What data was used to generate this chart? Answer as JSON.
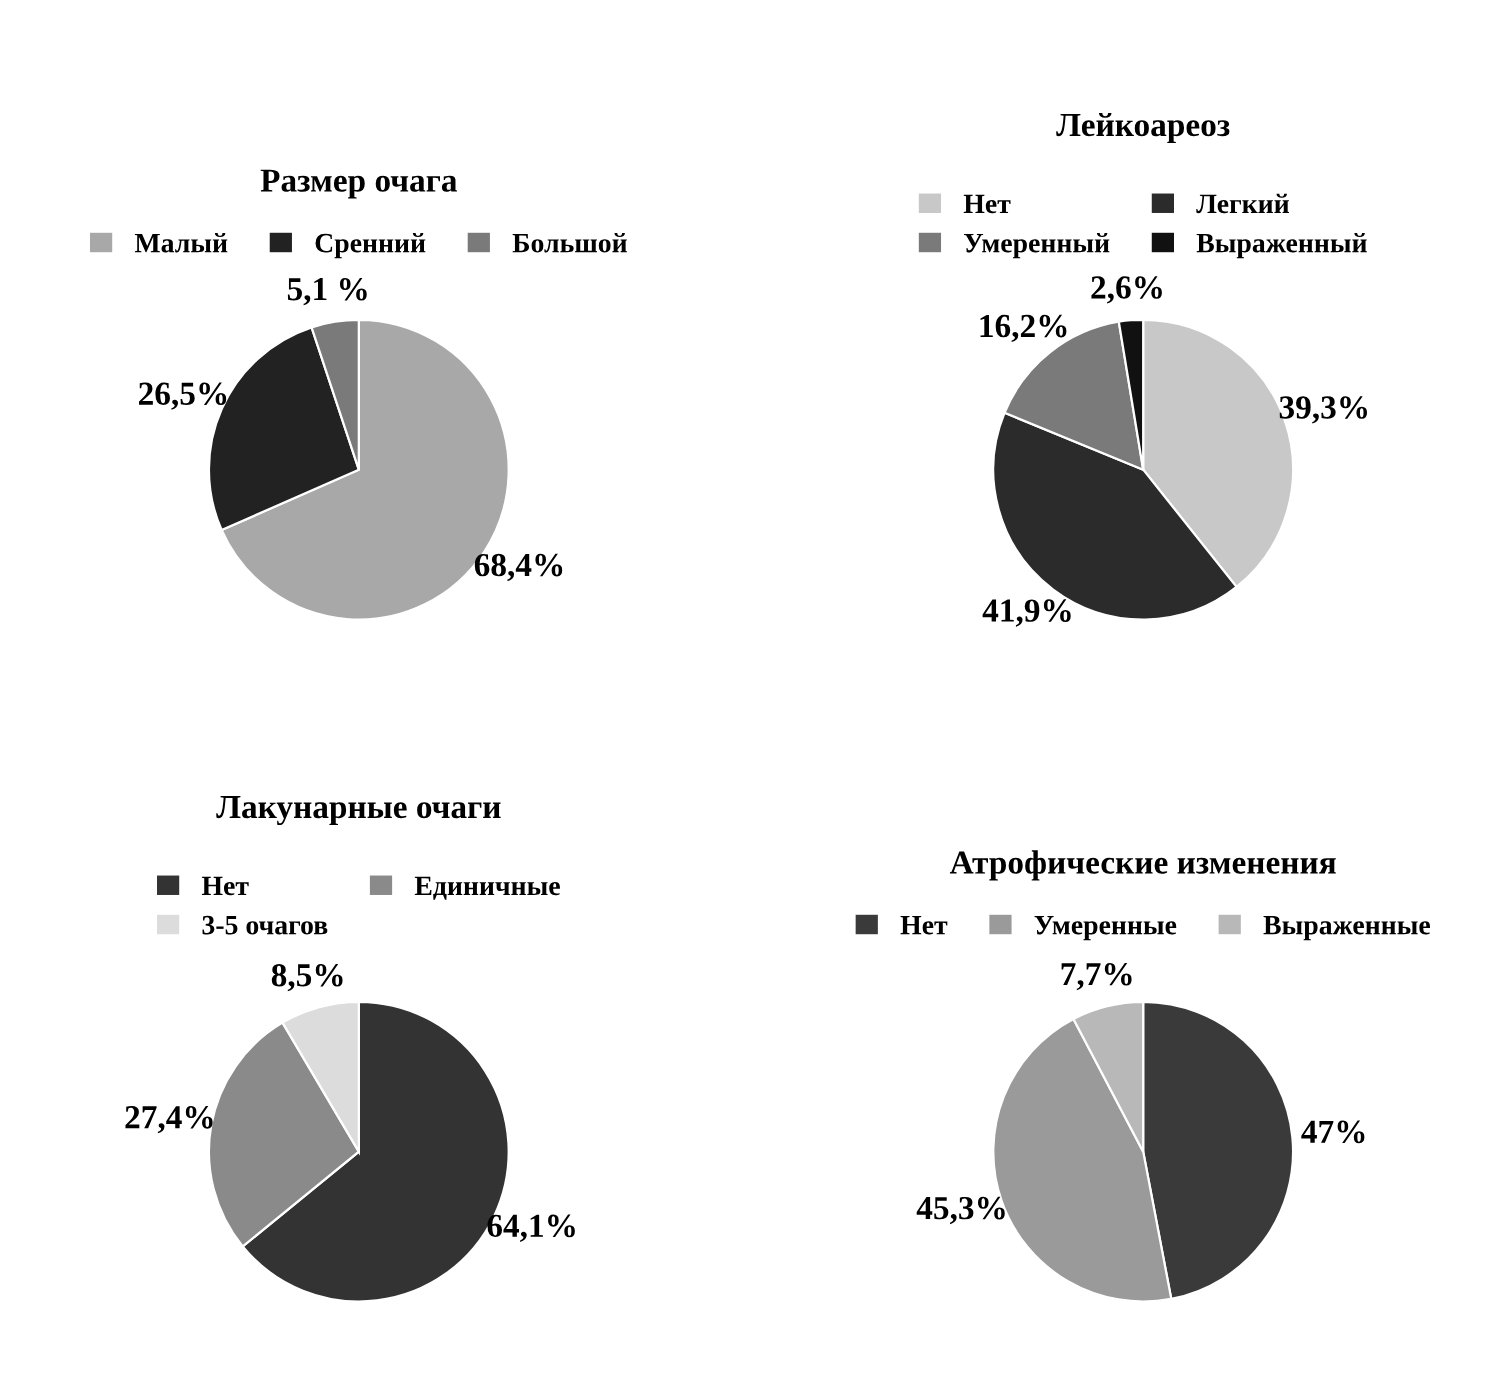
{
  "chart_data": [
    {
      "type": "pie",
      "title": "Размер очага",
      "categories": [
        "Малый",
        "Сренний",
        "Большой"
      ],
      "values": [
        68.4,
        26.5,
        5.1
      ],
      "colors": [
        "#a8a8a8",
        "#222222",
        "#7a7a7a"
      ],
      "value_labels": [
        "68,4%",
        "26,5%",
        "5,1 %"
      ],
      "legend": "top"
    },
    {
      "type": "pie",
      "title": "Лейкоареоз",
      "categories": [
        "Нет",
        "Легкий",
        "Умеренный",
        "Выраженный"
      ],
      "values": [
        39.3,
        41.9,
        16.2,
        2.6
      ],
      "colors": [
        "#c8c8c8",
        "#2b2b2b",
        "#7a7a7a",
        "#111111"
      ],
      "value_labels": [
        "39,3%",
        "41,9%",
        "16,2%",
        "2,6%"
      ],
      "legend": "top"
    },
    {
      "type": "pie",
      "title": "Лакунарные очаги",
      "categories": [
        "Нет",
        "Единичные",
        "3-5 очагов"
      ],
      "values": [
        64.1,
        27.4,
        8.5
      ],
      "colors": [
        "#333333",
        "#8a8a8a",
        "#dcdcdc"
      ],
      "value_labels": [
        "64,1%",
        "27,4%",
        "8,5%"
      ],
      "legend": "top"
    },
    {
      "type": "pie",
      "title": "Атрофические изменения",
      "categories": [
        "Нет",
        "Умеренные",
        "Выраженные"
      ],
      "values": [
        47,
        45.3,
        7.7
      ],
      "colors": [
        "#3a3a3a",
        "#9a9a9a",
        "#b8b8b8"
      ],
      "value_labels": [
        "47%",
        "45,3%",
        "7,7%"
      ],
      "legend": "top"
    }
  ]
}
